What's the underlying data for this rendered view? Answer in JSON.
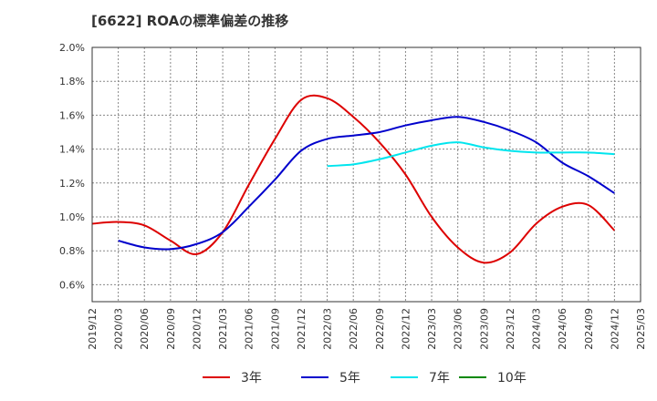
{
  "chart_data": {
    "type": "line",
    "title": "[6622]  ROAの標準偏差の推移",
    "ylim": [
      0.5,
      2.0
    ],
    "yticks": [
      0.6,
      0.8,
      1.0,
      1.2,
      1.4,
      1.6,
      1.8,
      2.0
    ],
    "yticklabels": [
      "0.6%",
      "0.8%",
      "1.0%",
      "1.2%",
      "1.4%",
      "1.6%",
      "1.8%",
      "2.0%"
    ],
    "xticklabels": [
      "2019/12",
      "2020/03",
      "2020/06",
      "2020/09",
      "2020/12",
      "2021/03",
      "2021/06",
      "2021/09",
      "2021/12",
      "2022/03",
      "2022/06",
      "2022/09",
      "2022/12",
      "2023/03",
      "2023/06",
      "2023/09",
      "2023/12",
      "2024/03",
      "2024/06",
      "2024/09",
      "2024/12",
      "2025/03"
    ],
    "grid": true,
    "legend_position": "bottom",
    "series": [
      {
        "name": "3年",
        "color": "#dd0000",
        "x": [
          "2019/12",
          "2020/03",
          "2020/06",
          "2020/09",
          "2020/12",
          "2021/03",
          "2021/06",
          "2021/09",
          "2021/12",
          "2022/03",
          "2022/06",
          "2022/09",
          "2022/12",
          "2023/03",
          "2023/06",
          "2023/09",
          "2023/12",
          "2024/03",
          "2024/06",
          "2024/09",
          "2024/12"
        ],
        "values": [
          0.96,
          0.97,
          0.95,
          0.86,
          0.78,
          0.91,
          1.19,
          1.46,
          1.69,
          1.7,
          1.59,
          1.44,
          1.25,
          1.0,
          0.82,
          0.73,
          0.79,
          0.96,
          1.06,
          1.07,
          0.92
        ]
      },
      {
        "name": "5年",
        "color": "#0000cc",
        "x": [
          "2020/03",
          "2020/06",
          "2020/09",
          "2020/12",
          "2021/03",
          "2021/06",
          "2021/09",
          "2021/12",
          "2022/03",
          "2022/06",
          "2022/09",
          "2022/12",
          "2023/03",
          "2023/06",
          "2023/09",
          "2023/12",
          "2024/03",
          "2024/06",
          "2024/09",
          "2024/12"
        ],
        "values": [
          0.86,
          0.82,
          0.81,
          0.84,
          0.91,
          1.06,
          1.22,
          1.39,
          1.46,
          1.48,
          1.5,
          1.54,
          1.57,
          1.59,
          1.56,
          1.51,
          1.44,
          1.32,
          1.24,
          1.14
        ]
      },
      {
        "name": "7年",
        "color": "#00e5ee",
        "x": [
          "2022/03",
          "2022/06",
          "2022/09",
          "2022/12",
          "2023/03",
          "2023/06",
          "2023/09",
          "2023/12",
          "2024/03",
          "2024/06",
          "2024/09",
          "2024/12"
        ],
        "values": [
          1.3,
          1.31,
          1.34,
          1.38,
          1.42,
          1.44,
          1.41,
          1.39,
          1.38,
          1.38,
          1.38,
          1.37
        ]
      },
      {
        "name": "10年",
        "color": "#008800",
        "x": [],
        "values": []
      }
    ]
  }
}
